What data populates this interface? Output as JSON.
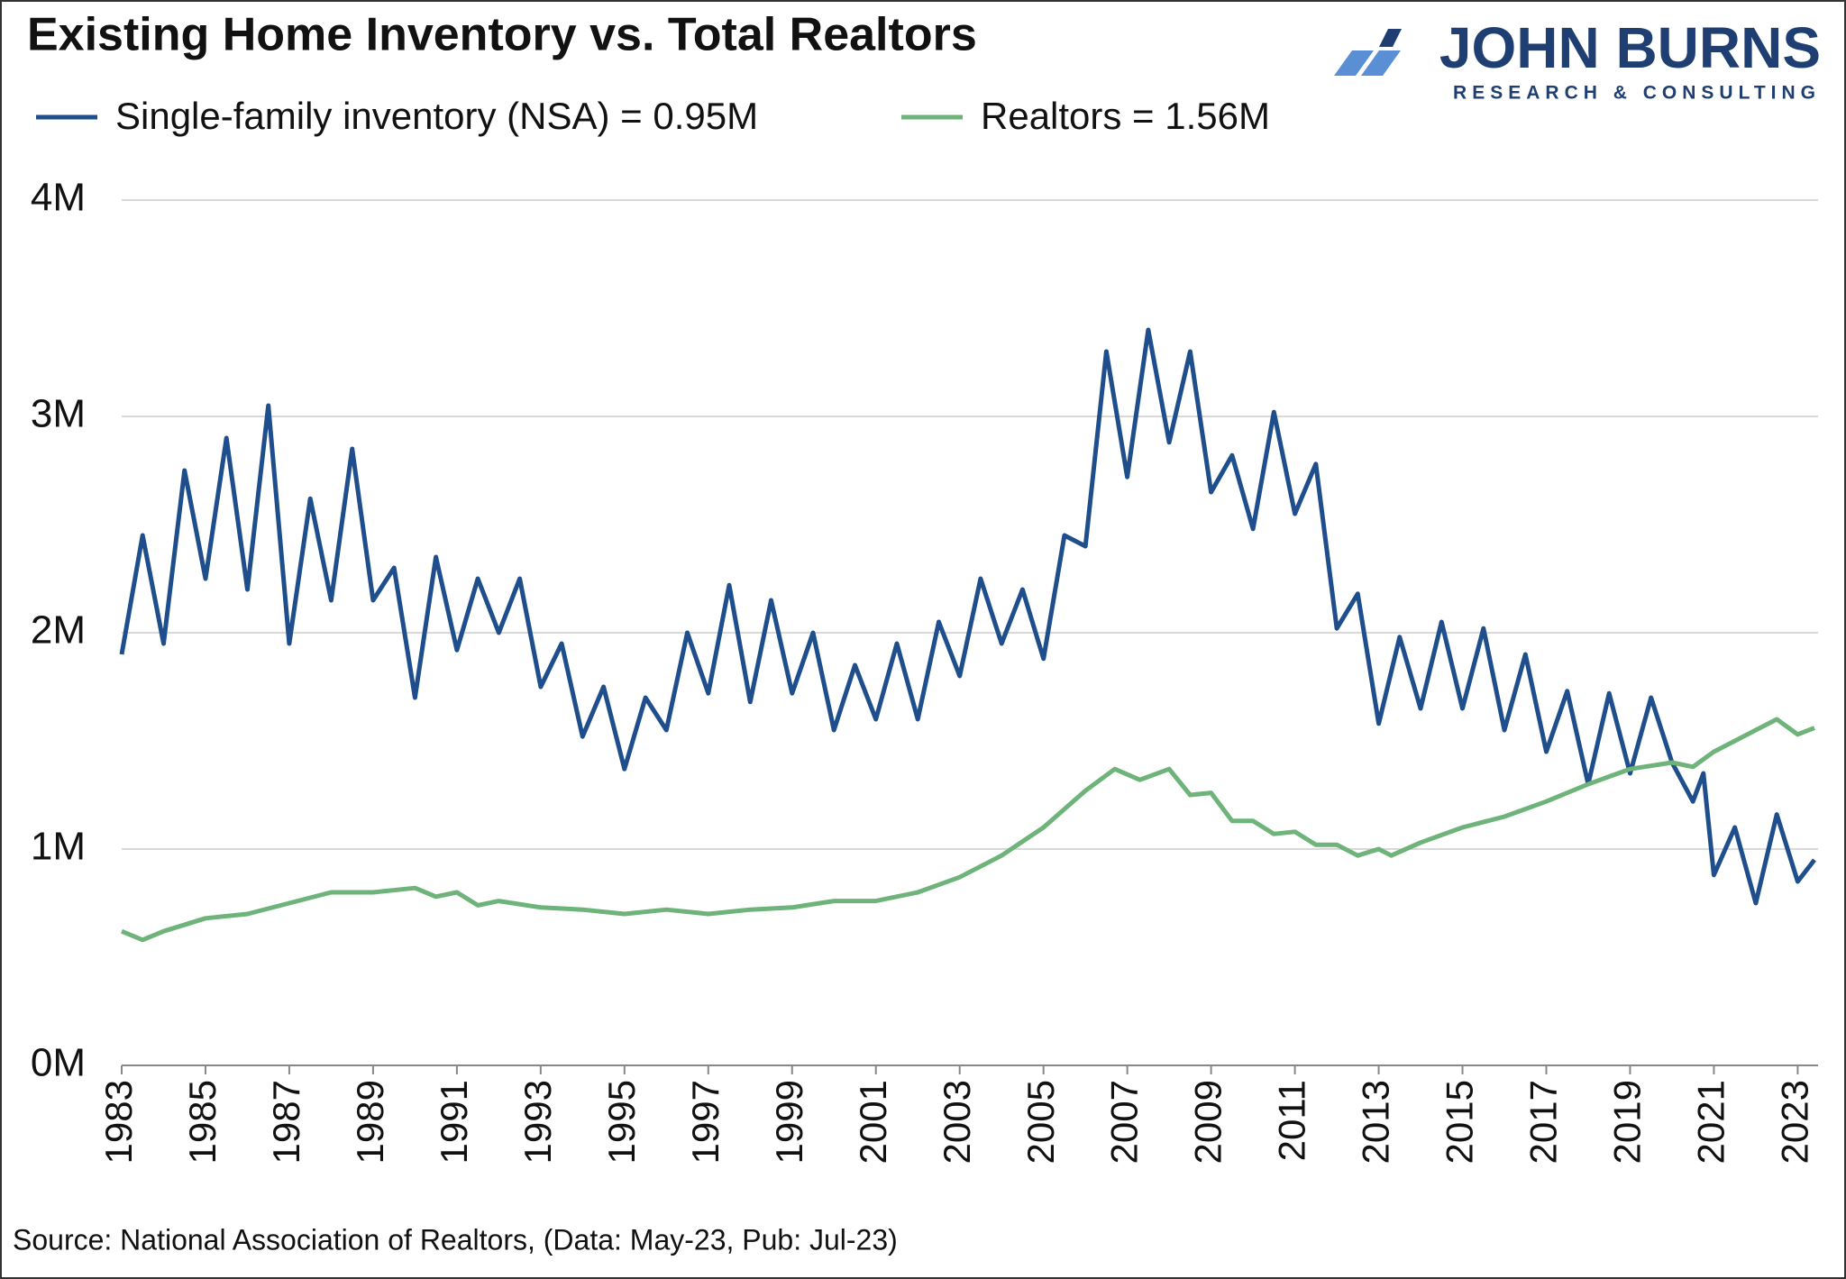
{
  "chart_data": {
    "type": "line",
    "title": "Existing Home Inventory vs. Total Realtors",
    "source": "Source: National Association of Realtors, (Data: May-23, Pub: Jul-23)",
    "logo": {
      "name": "JOHN BURNS",
      "tagline": "RESEARCH & CONSULTING"
    },
    "xlim": [
      1983,
      2023.4
    ],
    "xticks": [
      1983,
      1985,
      1987,
      1989,
      1991,
      1993,
      1995,
      1997,
      1999,
      2001,
      2003,
      2005,
      2007,
      2009,
      2011,
      2013,
      2015,
      2017,
      2019,
      2021,
      2023
    ],
    "ylim": [
      0,
      4
    ],
    "yticks": [
      {
        "value": 0,
        "label": "0M"
      },
      {
        "value": 1,
        "label": "1M"
      },
      {
        "value": 2,
        "label": "2M"
      },
      {
        "value": 3,
        "label": "3M"
      },
      {
        "value": 4,
        "label": "4M"
      }
    ],
    "grid": true,
    "series": [
      {
        "name": "Single-family inventory (NSA) = 0.95M",
        "color": "#1f4e8c",
        "x": [
          1983,
          1983.5,
          1984,
          1984.5,
          1985,
          1985.5,
          1986,
          1986.5,
          1987,
          1987.5,
          1988,
          1988.5,
          1989,
          1989.5,
          1990,
          1990.5,
          1991,
          1991.5,
          1992,
          1992.5,
          1993,
          1993.5,
          1994,
          1994.5,
          1995,
          1995.5,
          1996,
          1996.5,
          1997,
          1997.5,
          1998,
          1998.5,
          1999,
          1999.5,
          2000,
          2000.5,
          2001,
          2001.5,
          2002,
          2002.5,
          2003,
          2003.5,
          2004,
          2004.5,
          2005,
          2005.5,
          2006,
          2006.5,
          2007,
          2007.5,
          2008,
          2008.5,
          2009,
          2009.5,
          2010,
          2010.5,
          2011,
          2011.5,
          2012,
          2012.5,
          2013,
          2013.5,
          2014,
          2014.5,
          2015,
          2015.5,
          2016,
          2016.5,
          2017,
          2017.5,
          2018,
          2018.5,
          2019,
          2019.5,
          2020,
          2020.5,
          2020.75,
          2021,
          2021.5,
          2022,
          2022.5,
          2023,
          2023.4
        ],
        "values": [
          1.9,
          2.45,
          1.95,
          2.75,
          2.25,
          2.9,
          2.2,
          3.05,
          1.95,
          2.62,
          2.15,
          2.85,
          2.15,
          2.3,
          1.7,
          2.35,
          1.92,
          2.25,
          2.0,
          2.25,
          1.75,
          1.95,
          1.52,
          1.75,
          1.37,
          1.7,
          1.55,
          2.0,
          1.72,
          2.22,
          1.68,
          2.15,
          1.72,
          2.0,
          1.55,
          1.85,
          1.6,
          1.95,
          1.6,
          2.05,
          1.8,
          2.25,
          1.95,
          2.2,
          1.88,
          2.45,
          2.4,
          3.3,
          2.72,
          3.4,
          2.88,
          3.3,
          2.65,
          2.82,
          2.48,
          3.02,
          2.55,
          2.78,
          2.02,
          2.18,
          1.58,
          1.98,
          1.65,
          2.05,
          1.65,
          2.02,
          1.55,
          1.9,
          1.45,
          1.73,
          1.3,
          1.72,
          1.35,
          1.7,
          1.4,
          1.22,
          1.35,
          0.88,
          1.1,
          0.75,
          1.16,
          0.85,
          0.95
        ]
      },
      {
        "name": "Realtors = 1.56M",
        "color": "#6db37a",
        "x": [
          1983,
          1983.5,
          1984,
          1985,
          1986,
          1987,
          1988,
          1989,
          1990,
          1990.5,
          1991,
          1991.5,
          1992,
          1993,
          1994,
          1995,
          1996,
          1997,
          1998,
          1999,
          2000,
          2001,
          2002,
          2003,
          2004,
          2005,
          2006,
          2006.7,
          2007.3,
          2008,
          2008.5,
          2009,
          2009.5,
          2010,
          2010.5,
          2011,
          2011.5,
          2012,
          2012.5,
          2013,
          2013.3,
          2014,
          2015,
          2016,
          2017,
          2018,
          2019,
          2020,
          2020.5,
          2021,
          2022,
          2022.5,
          2023,
          2023.4
        ],
        "values": [
          0.62,
          0.58,
          0.62,
          0.68,
          0.7,
          0.75,
          0.8,
          0.8,
          0.82,
          0.78,
          0.8,
          0.74,
          0.76,
          0.73,
          0.72,
          0.7,
          0.72,
          0.7,
          0.72,
          0.73,
          0.76,
          0.76,
          0.8,
          0.87,
          0.97,
          1.1,
          1.27,
          1.37,
          1.32,
          1.37,
          1.25,
          1.26,
          1.13,
          1.13,
          1.07,
          1.08,
          1.02,
          1.02,
          0.97,
          1.0,
          0.97,
          1.03,
          1.1,
          1.15,
          1.22,
          1.3,
          1.37,
          1.4,
          1.38,
          1.45,
          1.55,
          1.6,
          1.53,
          1.56
        ]
      }
    ]
  }
}
